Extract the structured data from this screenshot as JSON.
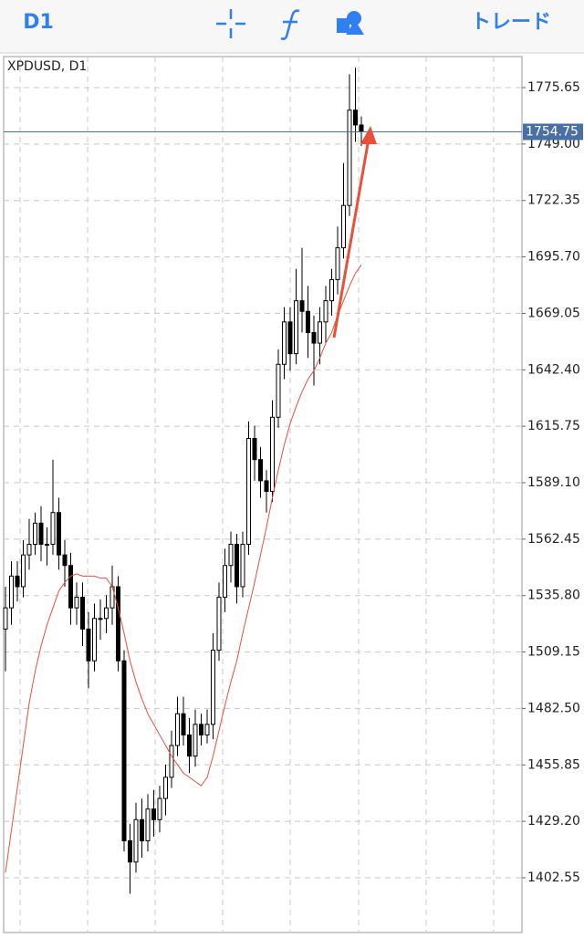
{
  "toolbar": {
    "timeframe": "D1",
    "trade": "トレード"
  },
  "chart_data": {
    "type": "candlestick",
    "title": "XPDUSD, D1",
    "open": [
      1520,
      1530,
      1545,
      1540,
      1555,
      1560,
      1570,
      1560,
      1560,
      1575,
      1555,
      1550,
      1530,
      1535,
      1520,
      1505,
      1525,
      1525,
      1530,
      1540,
      1505,
      1420,
      1410,
      1430,
      1420,
      1435,
      1430,
      1440,
      1450,
      1465,
      1480,
      1470,
      1460,
      1475,
      1470,
      1475,
      1510,
      1535,
      1550,
      1560,
      1540,
      1560,
      1610,
      1600,
      1590,
      1585,
      1620,
      1645,
      1665,
      1650,
      1675,
      1670,
      1660,
      1655,
      1665,
      1675,
      1685,
      1700,
      1720,
      1765,
      1758
    ],
    "high": [
      1540,
      1552,
      1552,
      1562,
      1572,
      1575,
      1578,
      1568,
      1600,
      1582,
      1562,
      1556,
      1542,
      1542,
      1528,
      1532,
      1534,
      1536,
      1550,
      1545,
      1510,
      1428,
      1438,
      1440,
      1442,
      1444,
      1446,
      1456,
      1472,
      1488,
      1488,
      1478,
      1482,
      1480,
      1482,
      1518,
      1542,
      1558,
      1566,
      1565,
      1566,
      1618,
      1616,
      1606,
      1595,
      1628,
      1652,
      1672,
      1672,
      1690,
      1700,
      1682,
      1668,
      1672,
      1682,
      1690,
      1710,
      1740,
      1782,
      1785,
      1762
    ],
    "low": [
      1500,
      1522,
      1533,
      1535,
      1548,
      1555,
      1552,
      1550,
      1555,
      1548,
      1540,
      1522,
      1522,
      1512,
      1492,
      1500,
      1515,
      1518,
      1522,
      1500,
      1415,
      1395,
      1405,
      1412,
      1415,
      1422,
      1424,
      1432,
      1445,
      1460,
      1465,
      1452,
      1455,
      1465,
      1466,
      1468,
      1505,
      1528,
      1542,
      1532,
      1535,
      1555,
      1590,
      1582,
      1575,
      1580,
      1615,
      1638,
      1642,
      1645,
      1660,
      1648,
      1635,
      1645,
      1655,
      1668,
      1678,
      1695,
      1715,
      1750,
      1748
    ],
    "close": [
      1530,
      1545,
      1540,
      1555,
      1560,
      1570,
      1560,
      1560,
      1575,
      1555,
      1550,
      1530,
      1535,
      1520,
      1505,
      1525,
      1525,
      1530,
      1540,
      1505,
      1420,
      1410,
      1430,
      1420,
      1435,
      1430,
      1440,
      1450,
      1465,
      1480,
      1470,
      1460,
      1475,
      1470,
      1475,
      1510,
      1535,
      1550,
      1560,
      1540,
      1560,
      1610,
      1600,
      1590,
      1585,
      1620,
      1645,
      1665,
      1650,
      1675,
      1670,
      1660,
      1655,
      1665,
      1675,
      1685,
      1700,
      1720,
      1765,
      1758,
      1755
    ],
    "ma": {
      "color": "#e8503a",
      "values": [
        1405,
        1425,
        1445,
        1465,
        1485,
        1500,
        1512,
        1522,
        1530,
        1538,
        1542,
        1545,
        1546,
        1545,
        1545,
        1545,
        1544,
        1544,
        1540,
        1530,
        1518,
        1505,
        1495,
        1487,
        1480,
        1475,
        1470,
        1465,
        1460,
        1456,
        1452,
        1450,
        1448,
        1446,
        1450,
        1460,
        1472,
        1484,
        1495,
        1505,
        1518,
        1530,
        1542,
        1555,
        1568,
        1582,
        1595,
        1607,
        1617,
        1625,
        1632,
        1638,
        1642,
        1648,
        1655,
        1660,
        1668,
        1675,
        1682,
        1688,
        1692
      ]
    },
    "current_price": {
      "value": 1754.75,
      "color": "#4a6fa5"
    },
    "ylim": [
      1376.7,
      1790.3
    ],
    "yticks": [
      1775.65,
      {
        "value": 1749,
        "label": "1749.00"
      },
      1722.35,
      {
        "value": 1695.7,
        "label": "1695.70"
      },
      1669.05,
      {
        "value": 1642.4,
        "label": "1642.40"
      },
      1615.75,
      {
        "value": 1589.1,
        "label": "1589.10"
      },
      1562.45,
      {
        "value": 1535.8,
        "label": "1535.80"
      },
      1509.15,
      {
        "value": 1482.5,
        "label": "1482.50"
      },
      1455.85,
      {
        "value": 1429.2,
        "label": "1429.20"
      },
      1402.55
    ],
    "grid": true
  }
}
